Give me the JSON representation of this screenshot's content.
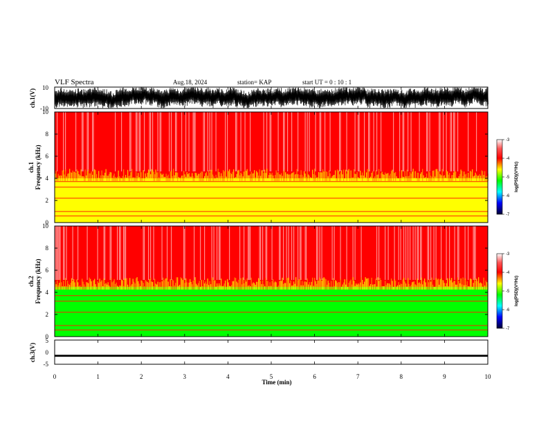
{
  "header": {
    "title": "VLF Spectra",
    "date": "Aug.18, 2024",
    "station": "station= KAP",
    "start": "start  UT  =   0  : 10 : 1"
  },
  "chart_data": [
    {
      "type": "line",
      "panel": "ch1-voltage",
      "ylabel": "ch.1(V)",
      "ylim": [
        -10,
        10
      ],
      "yticks": [
        "10",
        "-10"
      ],
      "xlim": [
        0,
        10
      ],
      "note_trace_color": "#000000"
    },
    {
      "type": "heatmap",
      "panel": "ch1-spectrogram",
      "ylabel_top": "ch.1",
      "ylabel": "Frequency (kHz)",
      "ylim": [
        0,
        10
      ],
      "yticks": [
        "0",
        "2",
        "4",
        "6",
        "8",
        "10"
      ],
      "xlim": [
        0,
        10
      ],
      "colorbar": {
        "ticks": [
          "-3",
          "-4",
          "-5",
          "-6",
          "-7"
        ],
        "label": "log(PSD)(V²/Hz)",
        "range": [
          -7,
          -3
        ]
      },
      "bands_khz": [
        {
          "from": 0,
          "to": 4.0,
          "level": -4.6
        },
        {
          "from": 4.0,
          "to": 10,
          "level": -3.6
        }
      ]
    },
    {
      "type": "heatmap",
      "panel": "ch2-spectrogram",
      "ylabel_top": "ch.2",
      "ylabel": "Frequency (kHz)",
      "ylim": [
        0,
        10
      ],
      "yticks": [
        "0",
        "2",
        "4",
        "6",
        "8",
        "10"
      ],
      "xlim": [
        0,
        10
      ],
      "colorbar": {
        "ticks": [
          "-3",
          "-4",
          "-5",
          "-6",
          "-7"
        ],
        "label": "log(PSD)(V²/Hz)",
        "range": [
          -7,
          -3
        ]
      },
      "bands_khz": [
        {
          "from": 0,
          "to": 4.5,
          "level": -4.9
        },
        {
          "from": 4.5,
          "to": 10,
          "level": -3.6
        }
      ]
    },
    {
      "type": "line",
      "panel": "ch3-voltage",
      "ylabel": "ch.3(V)",
      "ylim": [
        -5,
        5
      ],
      "yticks": [
        "5",
        "0",
        "-5"
      ],
      "xlim": [
        0,
        10
      ],
      "level": -1.5
    }
  ],
  "xaxis": {
    "ticks": [
      "0",
      "1",
      "2",
      "3",
      "4",
      "5",
      "6",
      "7",
      "8",
      "9",
      "10"
    ],
    "label": "Time  (min)"
  },
  "colors": {
    "high": "#ff0000",
    "mid": "#ffff00",
    "low": "#00ff00",
    "trace": "#000000"
  }
}
